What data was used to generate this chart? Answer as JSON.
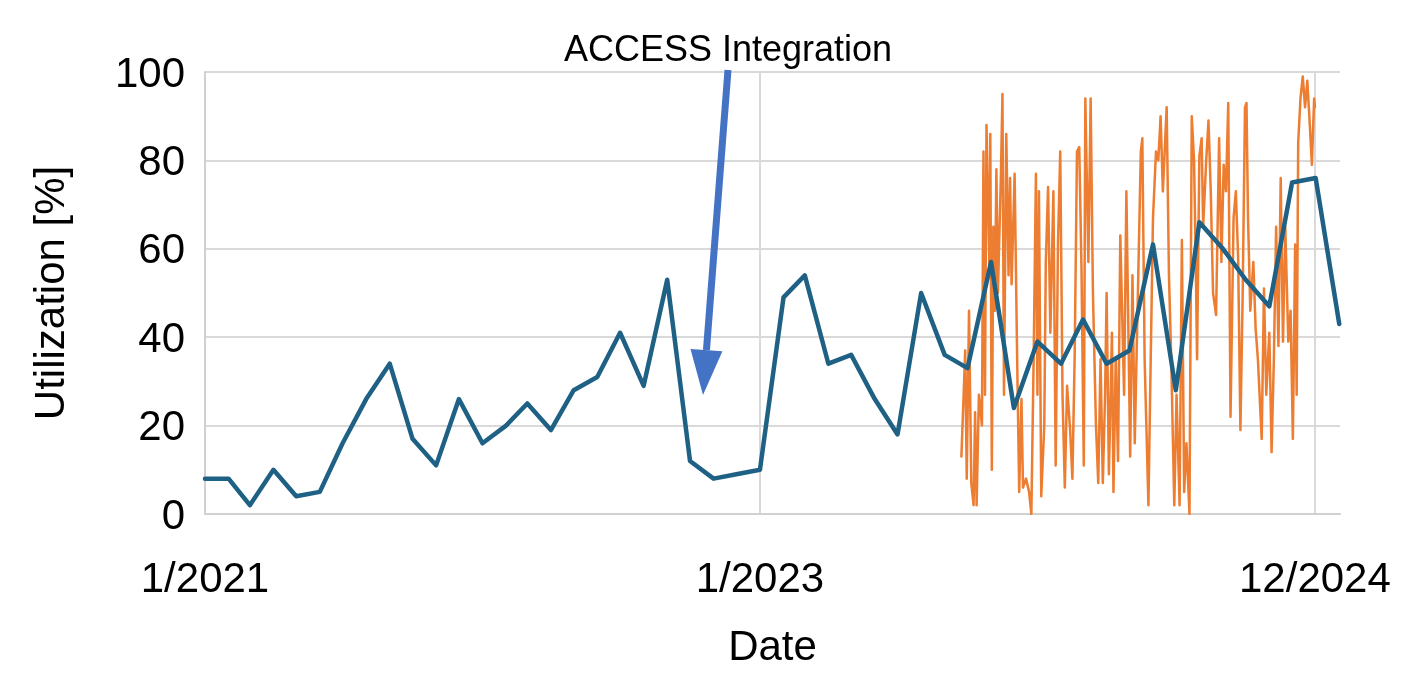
{
  "chart_data": {
    "type": "line",
    "xlabel": "Date",
    "ylabel": "Utilization [%]",
    "annotations": [
      "ACCESS Integration"
    ],
    "series": [
      {
        "color": "#ed7d31",
        "x": [
          "2023-09-23",
          "2023-09-28",
          "2023-09-30",
          "2023-10-03",
          "2023-10-06",
          "2023-10-09",
          "2023-10-11",
          "2023-10-13",
          "2023-10-16",
          "2023-10-20",
          "2023-10-22",
          "2023-10-24",
          "2023-10-26",
          "2023-10-30",
          "2023-10-31",
          "2023-11-02",
          "2023-11-04",
          "2023-11-06",
          "2023-11-08",
          "2023-11-10",
          "2023-11-14",
          "2023-11-16",
          "2023-11-18",
          "2023-11-21",
          "2023-11-24",
          "2023-11-26",
          "2023-11-28",
          "2023-12-02",
          "2023-12-05",
          "2023-12-08",
          "2023-12-11",
          "2023-12-13",
          "2023-12-17",
          "2023-12-21",
          "2023-12-24",
          "2023-12-27",
          "2023-12-30",
          "2024-01-01",
          "2024-01-03",
          "2024-01-06",
          "2024-01-10",
          "2024-01-12",
          "2024-01-15",
          "2024-01-18",
          "2024-01-22",
          "2024-01-25",
          "2024-01-28",
          "2024-01-31",
          "2024-02-03",
          "2024-02-06",
          "2024-02-09",
          "2024-02-13",
          "2024-02-16",
          "2024-02-19",
          "2024-02-22",
          "2024-02-25",
          "2024-02-28",
          "2024-03-02",
          "2024-03-04",
          "2024-03-08",
          "2024-03-11",
          "2024-03-14",
          "2024-03-18",
          "2024-03-21",
          "2024-03-24",
          "2024-03-27",
          "2024-03-30",
          "2024-04-01",
          "2024-04-04",
          "2024-04-08",
          "2024-04-10",
          "2024-04-13",
          "2024-04-16",
          "2024-04-19",
          "2024-04-24",
          "2024-04-27",
          "2024-05-02",
          "2024-05-05",
          "2024-05-08",
          "2024-05-13",
          "2024-05-16",
          "2024-05-18",
          "2024-05-21",
          "2024-05-26",
          "2024-05-29",
          "2024-06-01",
          "2024-06-05",
          "2024-06-08",
          "2024-06-11",
          "2024-06-14",
          "2024-06-19",
          "2024-06-22",
          "2024-06-25",
          "2024-06-29",
          "2024-07-02",
          "2024-07-06",
          "2024-07-09",
          "2024-07-12",
          "2024-07-15",
          "2024-07-19",
          "2024-07-22",
          "2024-07-25",
          "2024-07-27",
          "2024-07-29",
          "2024-08-01",
          "2024-08-04",
          "2024-08-06",
          "2024-08-10",
          "2024-08-13",
          "2024-08-16",
          "2024-08-19",
          "2024-08-23",
          "2024-08-27",
          "2024-08-30",
          "2024-09-02",
          "2024-09-05",
          "2024-09-08",
          "2024-09-11",
          "2024-09-15",
          "2024-09-18",
          "2024-09-21",
          "2024-09-24",
          "2024-09-27",
          "2024-09-30",
          "2024-10-02",
          "2024-10-04",
          "2024-10-07",
          "2024-10-11",
          "2024-10-14",
          "2024-10-17",
          "2024-10-22",
          "2024-10-25",
          "2024-10-28",
          "2024-11-01",
          "2024-11-04",
          "2024-11-07",
          "2024-11-10",
          "2024-11-13",
          "2024-11-16",
          "2024-11-19",
          "2024-11-22",
          "2024-11-26",
          "2024-11-29",
          "2024-12-02",
          "2024-12-05",
          "2024-12-07",
          "2024-12-09",
          "2024-12-12",
          "2024-12-15",
          "2024-12-18",
          "2024-12-21",
          "2024-12-24",
          "2024-12-27",
          "2024-12-30",
          "2024-12-31"
        ],
        "values": [
          13,
          37,
          8,
          46,
          7,
          2,
          23,
          2,
          27,
          20,
          82,
          27,
          88,
          54,
          86,
          10,
          65,
          46,
          78,
          50,
          77,
          95,
          27,
          86,
          54,
          76,
          52,
          77,
          39,
          5,
          26,
          6,
          8,
          5,
          0,
          35,
          77,
          27,
          73,
          4,
          20,
          57,
          74,
          41,
          73,
          11,
          61,
          82,
          27,
          6,
          29,
          19,
          8,
          36,
          82,
          83,
          55,
          11,
          94,
          57,
          94,
          50,
          20,
          7,
          35,
          7,
          27,
          50,
          9,
          41,
          5,
          35,
          12,
          63,
          27,
          73,
          13,
          54,
          16,
          57,
          82,
          85,
          35,
          2,
          35,
          67,
          82,
          80,
          90,
          73,
          92,
          54,
          35,
          2,
          27,
          2,
          62,
          5,
          16,
          0,
          90,
          80,
          60,
          35,
          81,
          85,
          65,
          80,
          89,
          73,
          50,
          45,
          85,
          57,
          79,
          73,
          93,
          22,
          67,
          73,
          58,
          19,
          50,
          92,
          93,
          67,
          46,
          57,
          42,
          35,
          17,
          51,
          27,
          41,
          14,
          35,
          65,
          38,
          76,
          39,
          65,
          39,
          46,
          17,
          61,
          27,
          84,
          94,
          99,
          92,
          98,
          89,
          79,
          94,
          92
        ]
      },
      {
        "color": "#1f6185",
        "x": [
          "2021-01-01",
          "2021-02-01",
          "2021-03-01",
          "2021-04-01",
          "2021-05-01",
          "2021-06-01",
          "2021-07-01",
          "2021-08-01",
          "2021-09-01",
          "2021-10-01",
          "2021-11-01",
          "2021-12-01",
          "2022-01-01",
          "2022-02-01",
          "2022-03-01",
          "2022-04-01",
          "2022-05-01",
          "2022-06-01",
          "2022-07-01",
          "2022-08-01",
          "2022-09-01",
          "2022-10-01",
          "2022-11-01",
          "2022-12-01",
          "2023-01-01",
          "2023-02-01",
          "2023-03-01",
          "2023-04-01",
          "2023-05-01",
          "2023-06-01",
          "2023-07-01",
          "2023-08-01",
          "2023-09-01",
          "2023-10-01",
          "2023-11-01",
          "2023-12-01",
          "2024-01-01",
          "2024-02-01",
          "2024-03-01",
          "2024-04-01",
          "2024-05-01",
          "2024-06-01",
          "2024-07-01",
          "2024-08-01",
          "2024-09-01",
          "2024-10-01",
          "2024-11-01",
          "2024-12-01",
          "2025-01-01",
          "2025-02-01"
        ],
        "values": [
          8,
          8,
          2,
          10,
          4,
          5,
          16,
          26,
          34,
          17,
          11,
          26,
          16,
          20,
          25,
          19,
          28,
          31,
          41,
          29,
          53,
          12,
          8,
          9,
          10,
          49,
          54,
          34,
          36,
          26,
          18,
          50,
          36,
          33,
          57,
          24,
          39,
          34,
          44,
          34,
          37,
          61,
          28,
          66,
          60,
          53,
          47,
          75,
          76,
          43
        ]
      }
    ],
    "xlim": [
      "2021-01-01",
      "2025-02-02"
    ],
    "xticks": [
      {
        "value": "2021-01-01",
        "label": "1/2021"
      },
      {
        "value": "2023-01-01",
        "label": "1/2023"
      },
      {
        "value": "2024-12-31",
        "label": "12/2024"
      }
    ],
    "ylim": [
      0,
      100
    ],
    "yticks": [
      0,
      20,
      40,
      60,
      80,
      100
    ],
    "grid": true,
    "marker": "none",
    "line_style": "solid"
  }
}
